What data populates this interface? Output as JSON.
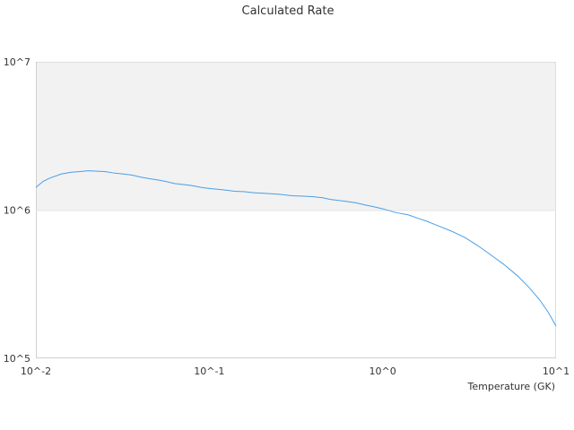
{
  "chart_data": {
    "type": "line",
    "title": "Calculated Rate",
    "xlabel": "Temperature (GK)",
    "ylabel": "",
    "xscale": "log",
    "yscale": "log",
    "xlim": [
      0.01,
      10
    ],
    "ylim": [
      100000,
      10000000
    ],
    "x_ticks": [
      "10^-2",
      "10^-1",
      "10^0",
      "10^1"
    ],
    "y_ticks": [
      "10^5",
      "10^6",
      "10^7"
    ],
    "grid": false,
    "legend": "none",
    "band": {
      "from": 1000000,
      "to": 10000000,
      "color": "#f2f2f2"
    },
    "series": [
      {
        "color": "#4a9ee6",
        "x": [
          0.01,
          0.011,
          0.012,
          0.014,
          0.016,
          0.018,
          0.02,
          0.022,
          0.025,
          0.028,
          0.032,
          0.036,
          0.04,
          0.045,
          0.05,
          0.056,
          0.063,
          0.07,
          0.08,
          0.09,
          0.1,
          0.12,
          0.14,
          0.16,
          0.18,
          0.2,
          0.25,
          0.3,
          0.35,
          0.4,
          0.45,
          0.5,
          0.6,
          0.7,
          0.8,
          0.9,
          1.0,
          1.2,
          1.4,
          1.6,
          1.8,
          2.0,
          2.5,
          3.0,
          3.5,
          4.0,
          4.5,
          5.0,
          6.0,
          7.0,
          8.0,
          9.0,
          10.0
        ],
        "values": [
          1420000,
          1560000,
          1640000,
          1750000,
          1800000,
          1820000,
          1840000,
          1830000,
          1820000,
          1780000,
          1750000,
          1720000,
          1670000,
          1630000,
          1600000,
          1560000,
          1510000,
          1490000,
          1460000,
          1420000,
          1400000,
          1370000,
          1340000,
          1330000,
          1310000,
          1300000,
          1280000,
          1250000,
          1240000,
          1230000,
          1210000,
          1180000,
          1150000,
          1120000,
          1080000,
          1050000,
          1020000,
          960000,
          930000,
          880000,
          840000,
          800000,
          720000,
          650000,
          580000,
          520000,
          470000,
          430000,
          360000,
          300000,
          250000,
          205000,
          165000
        ]
      }
    ]
  }
}
